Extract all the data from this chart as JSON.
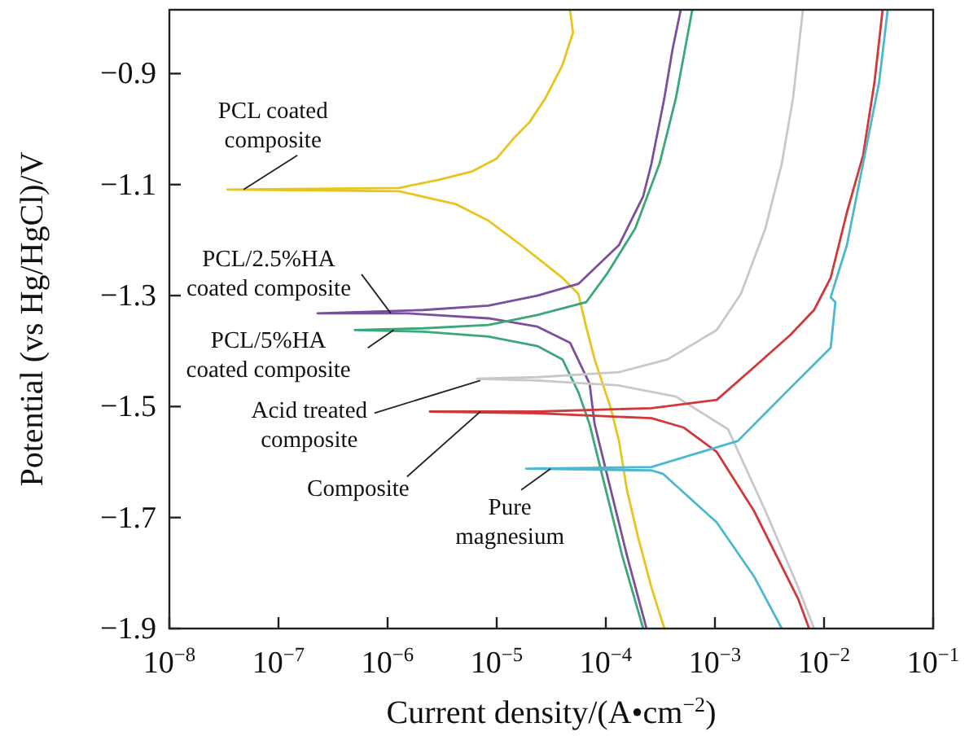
{
  "chart_data": {
    "type": "line",
    "xlabel": "Current density/(A•cm$^{−2}$)",
    "ylabel": "Potential (vs Hg/HgCl)/V",
    "log": "x",
    "grid": false,
    "xlim": [
      1e-08,
      0.1
    ],
    "xticks": [
      {
        "value": 1e-08,
        "label": "10$^{−8}$"
      },
      {
        "value": 1e-07,
        "label": "10$^{−7}$"
      },
      {
        "value": 1e-06,
        "label": "10$^{−6}$"
      },
      {
        "value": 1e-05,
        "label": "10$^{−5}$"
      },
      {
        "value": 0.0001,
        "label": "10$^{−4}$"
      },
      {
        "value": 0.001,
        "label": "10$^{−3}$"
      },
      {
        "value": 0.01,
        "label": "10$^{−2}$"
      },
      {
        "value": 0.1,
        "label": "10$^{−1}$"
      }
    ],
    "ylim": [
      -1.9,
      -0.785
    ],
    "yticks": [
      {
        "value": -0.9,
        "label": "−0.9"
      },
      {
        "value": -1.1,
        "label": "−1.1"
      },
      {
        "value": -1.3,
        "label": "−1.3"
      },
      {
        "value": -1.5,
        "label": "−1.5"
      },
      {
        "value": -1.7,
        "label": "−1.7"
      },
      {
        "value": -1.9,
        "label": "−1.9"
      }
    ],
    "series": [
      {
        "name": "PCL coated\ncomposite",
        "color": "#e8c51e",
        "x": [
          0.000344,
          0.000262,
          0.000199,
          0.000156,
          0.000132,
          0.000111,
          7.9e-05,
          6.6e-05,
          5.6e-05,
          4e-05,
          1.67e-05,
          8.4e-06,
          4.2e-06,
          1.27e-06,
          3.4e-08,
          1.27e-06,
          3e-06,
          6e-06,
          1e-05,
          1.41e-05,
          1.99e-05,
          2.8e-05,
          4e-05,
          5e-05,
          4.7e-05
        ],
        "values": [
          -1.9,
          -1.826,
          -1.738,
          -1.65,
          -1.562,
          -1.503,
          -1.415,
          -1.356,
          -1.297,
          -1.268,
          -1.209,
          -1.165,
          -1.135,
          -1.112,
          -1.109,
          -1.106,
          -1.091,
          -1.076,
          -1.053,
          -1.018,
          -0.988,
          -0.944,
          -0.885,
          -0.826,
          -0.785
        ]
      },
      {
        "name": "PCL/2.5%HA\ncoated composite",
        "color": "#7b4f9e",
        "x": [
          0.000236,
          0.000156,
          0.000111,
          7.9e-05,
          7.1e-05,
          4.7e-05,
          2.36e-05,
          8.4e-06,
          1.51e-06,
          2.28e-07,
          2.13e-06,
          8.4e-06,
          2.36e-05,
          5.6e-05,
          0.000132,
          0.00022,
          0.000262,
          0.000344,
          0.000409,
          0.000486
        ],
        "values": [
          -1.9,
          -1.768,
          -1.65,
          -1.532,
          -1.459,
          -1.385,
          -1.356,
          -1.341,
          -1.332,
          -1.332,
          -1.326,
          -1.318,
          -1.3,
          -1.279,
          -1.209,
          -1.121,
          -1.062,
          -0.944,
          -0.856,
          -0.785
        ]
      },
      {
        "name": "PCL/5%HA\ncoated composite",
        "color": "#3aa878",
        "x": [
          0.00022,
          0.000141,
          0.0001,
          7.1e-05,
          5.6e-05,
          4e-05,
          2.36e-05,
          8.4e-06,
          2.13e-06,
          5e-07,
          2.13e-06,
          8.4e-06,
          2.36e-05,
          6.6e-05,
          0.000104,
          0.000186,
          0.000311,
          0.000439,
          0.00062
        ],
        "values": [
          -1.9,
          -1.768,
          -1.65,
          -1.532,
          -1.474,
          -1.415,
          -1.391,
          -1.374,
          -1.365,
          -1.362,
          -1.359,
          -1.353,
          -1.335,
          -1.312,
          -1.259,
          -1.179,
          -1.062,
          -0.944,
          -0.785
        ]
      },
      {
        "name": "Acid treated\ncomposite",
        "color": "#c8c8c8",
        "x": [
          0.0081,
          0.0058,
          0.0029,
          0.00132,
          0.000439,
          0.000132,
          2.36e-05,
          6.6e-06,
          2.36e-05,
          0.000132,
          0.000369,
          0.00104,
          0.00173,
          0.0029,
          0.0041,
          0.0052,
          0.0064
        ],
        "values": [
          -1.9,
          -1.826,
          -1.688,
          -1.541,
          -1.482,
          -1.462,
          -1.453,
          -1.45,
          -1.447,
          -1.438,
          -1.415,
          -1.362,
          -1.297,
          -1.179,
          -1.062,
          -0.944,
          -0.785
        ]
      },
      {
        "name": "Composite",
        "color": "#d0383a",
        "x": [
          0.0073,
          0.0058,
          0.00228,
          0.00104,
          0.00052,
          0.000262,
          2.36e-05,
          2.44e-06,
          2.36e-05,
          0.000262,
          0.00104,
          0.00228,
          0.0049,
          0.0081,
          0.0115,
          0.0162,
          0.0228,
          0.029,
          0.0344
        ],
        "values": [
          -1.9,
          -1.847,
          -1.688,
          -1.582,
          -1.538,
          -1.521,
          -1.512,
          -1.509,
          -1.509,
          -1.503,
          -1.488,
          -1.429,
          -1.371,
          -1.326,
          -1.268,
          -1.15,
          -1.047,
          -0.915,
          -0.785
        ]
      },
      {
        "name": "Pure\nmagnesium",
        "color": "#4cb8d0",
        "x": [
          0.0041,
          0.00228,
          0.00104,
          0.000333,
          0.000262,
          1.86e-05,
          0.000262,
          0.00162,
          0.0045,
          0.0115,
          0.0127,
          0.0115,
          0.0162,
          0.0228,
          0.032,
          0.0383
        ],
        "values": [
          -1.9,
          -1.806,
          -1.709,
          -1.621,
          -1.615,
          -1.612,
          -1.609,
          -1.562,
          -1.474,
          -1.394,
          -1.312,
          -1.303,
          -1.209,
          -1.062,
          -0.915,
          -0.785
        ]
      }
    ]
  }
}
